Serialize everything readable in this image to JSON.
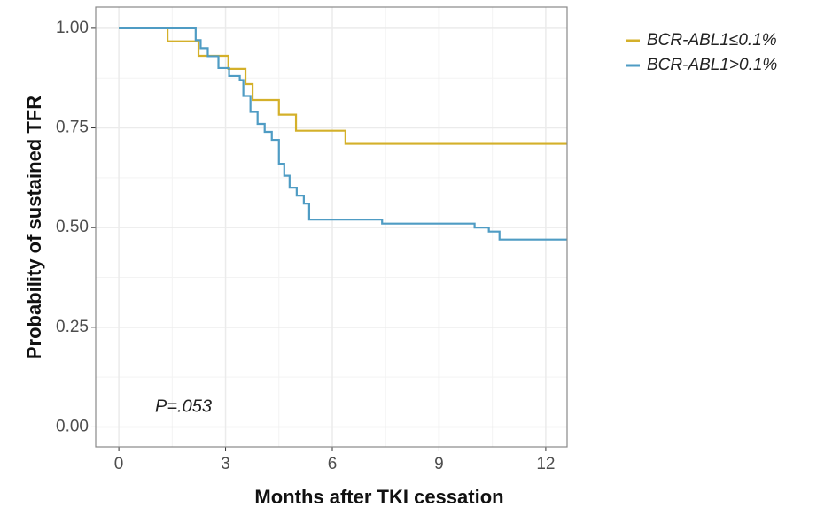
{
  "chart_data": {
    "type": "step",
    "x_label": "Months after TKI cessation",
    "y_label": "Probability of sustained TFR",
    "annotation": "P=.053",
    "xlim": [
      -0.65,
      12.6
    ],
    "xticks": [
      0,
      3,
      6,
      9,
      12
    ],
    "ylim": [
      -0.05,
      1.053
    ],
    "yticks": [
      {
        "value": 0,
        "label": "0.00"
      },
      {
        "value": 0.25,
        "label": "0.25"
      },
      {
        "value": 0.5,
        "label": "0.50"
      },
      {
        "value": 0.75,
        "label": "0.75"
      },
      {
        "value": 1,
        "label": "1.00"
      }
    ],
    "grid": true,
    "legend": "right",
    "series": [
      {
        "name": "BCR-ABL1≤0.1%",
        "color": "#d4b02a",
        "x": [
          0,
          1.37,
          2.24,
          3.08,
          3.56,
          3.76,
          4.5,
          4.98,
          6.37,
          12.6
        ],
        "values": [
          1,
          0.967,
          0.931,
          0.898,
          0.86,
          0.82,
          0.783,
          0.743,
          0.71,
          0.71
        ]
      },
      {
        "name": "BCR-ABL1>0.1%",
        "color": "#4f9cc4",
        "x": [
          0,
          2.16,
          2.3,
          2.5,
          2.8,
          3.1,
          3.4,
          3.5,
          3.7,
          3.9,
          4.1,
          4.3,
          4.5,
          4.65,
          4.8,
          5.0,
          5.2,
          5.35,
          7.4,
          10.0,
          10.4,
          10.7,
          12.6
        ],
        "values": [
          1,
          0.97,
          0.95,
          0.93,
          0.9,
          0.88,
          0.87,
          0.83,
          0.79,
          0.76,
          0.74,
          0.72,
          0.66,
          0.63,
          0.6,
          0.58,
          0.56,
          0.52,
          0.51,
          0.5,
          0.49,
          0.47,
          0.47
        ]
      }
    ]
  }
}
